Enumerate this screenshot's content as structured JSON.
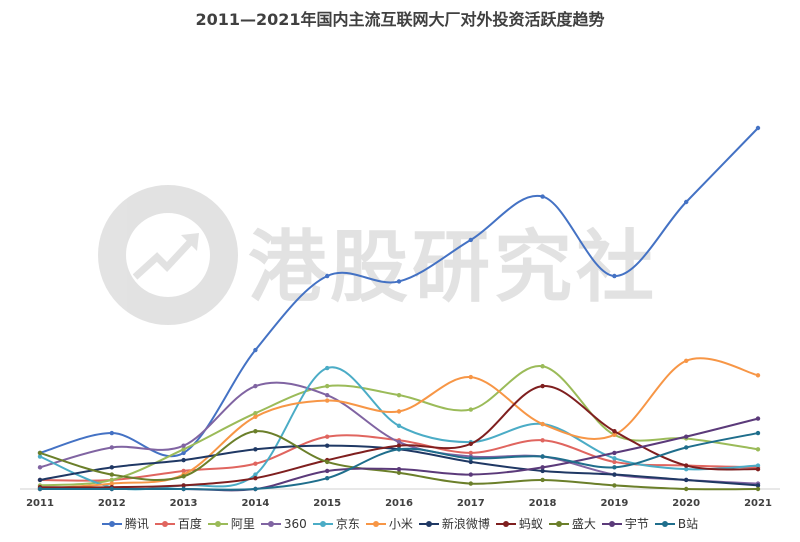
{
  "title": "2011—2021年国内主流互联网大厂对外投资活跃度趋势",
  "watermark": "港股研究社",
  "chart_data": {
    "type": "line",
    "title": "2011—2021年国内主流互联网大厂对外投资活跃度趋势",
    "x": [
      "2011",
      "2012",
      "2013",
      "2014",
      "2015",
      "2016",
      "2017",
      "2018",
      "2019",
      "2020",
      "2021"
    ],
    "ylim": [
      0,
      200
    ],
    "grid": false,
    "legend": "bottom",
    "series": [
      {
        "name": "腾讯",
        "color": "#4472C4",
        "values": [
          20,
          31,
          20,
          77,
          118,
          115,
          138,
          162,
          118,
          159,
          200
        ]
      },
      {
        "name": "百度",
        "color": "#E0655F",
        "values": [
          5,
          5,
          10,
          14,
          29,
          27,
          20,
          27,
          15,
          13,
          12
        ]
      },
      {
        "name": "阿里",
        "color": "#9BBB59",
        "values": [
          2,
          5,
          22,
          42,
          57,
          52,
          44,
          68,
          30,
          28,
          22
        ]
      },
      {
        "name": "360",
        "color": "#8064A2",
        "values": [
          12,
          23,
          24,
          57,
          52,
          26,
          18,
          18,
          8,
          5,
          3
        ]
      },
      {
        "name": "京东",
        "color": "#4BACC6",
        "values": [
          18,
          1,
          2,
          8,
          67,
          35,
          26,
          36,
          17,
          11,
          13
        ]
      },
      {
        "name": "小米",
        "color": "#F79646",
        "values": [
          0,
          3,
          8,
          40,
          49,
          43,
          62,
          36,
          30,
          71,
          63
        ]
      },
      {
        "name": "新浪微博",
        "color": "#1F3864",
        "values": [
          5,
          12,
          16,
          22,
          24,
          22,
          15,
          10,
          8,
          5,
          2
        ]
      },
      {
        "name": "蚂蚁",
        "color": "#7F1F1F",
        "values": [
          1,
          1,
          2,
          6,
          16,
          24,
          25,
          57,
          32,
          13,
          11
        ]
      },
      {
        "name": "盛大",
        "color": "#6B7F2A",
        "values": [
          20,
          8,
          7,
          32,
          15,
          9,
          3,
          5,
          2,
          0,
          0
        ]
      },
      {
        "name": "宇节",
        "color": "#5B3A7A",
        "values": [
          0,
          0,
          0,
          0,
          10,
          11,
          8,
          12,
          20,
          29,
          39
        ]
      },
      {
        "name": "B站",
        "color": "#1F6E8C",
        "values": [
          0,
          0,
          0,
          0,
          6,
          22,
          17,
          18,
          12,
          23,
          31
        ]
      }
    ]
  }
}
